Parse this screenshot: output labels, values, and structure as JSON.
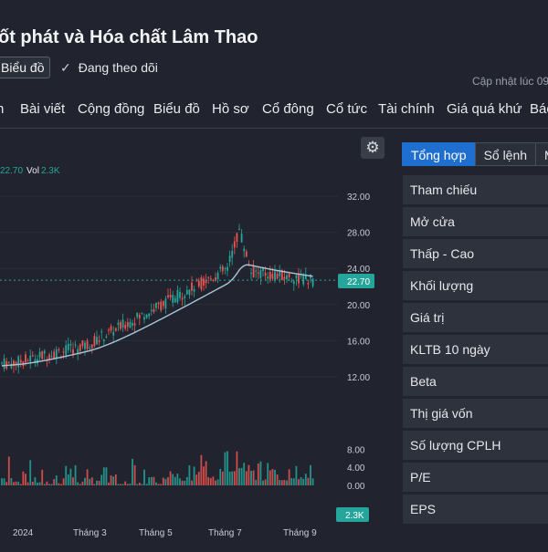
{
  "header": {
    "title": "ốt phát và Hóa chất Lâm Thao",
    "chart_button": "Biểu đồ",
    "follow_label": "Đang theo dõi",
    "updated_label": "Cập nhật lúc  09"
  },
  "nav": {
    "items": [
      "n",
      "Bài viết",
      "Cộng đồng",
      "Biểu đồ",
      "Hồ sơ",
      "Cổ đông",
      "Cổ tức",
      "Tài chính",
      "Giá quá khứ",
      "Báo"
    ]
  },
  "chart": {
    "legend_value": "22.70",
    "legend_vol_label": "Vol",
    "legend_vol_value": "2.3K",
    "price_label": "22.70",
    "volume_label": "2.3K",
    "price_ticks": [
      "32.00",
      "28.00",
      "24.00",
      "20.00",
      "16.00",
      "12.00"
    ],
    "volume_ticks": [
      "8.00",
      "4.00",
      "0.00"
    ],
    "x_ticks": [
      "2024",
      "Tháng 3",
      "Tháng 5",
      "Tháng 7",
      "Tháng 9"
    ],
    "colors": {
      "up": "#26a69a",
      "down": "#ef5350",
      "ma": "#a7c7d9",
      "label": "#26a69a"
    }
  },
  "chart_data": {
    "type": "candlestick",
    "y_price_range": [
      10,
      34
    ],
    "y_volume_range": [
      0,
      10
    ],
    "last_price": 22.7,
    "last_volume": "2.3K",
    "x_labels": [
      "2024",
      "Tháng 3",
      "Tháng 5",
      "Tháng 7",
      "Tháng 9"
    ],
    "closing_trend": [
      {
        "x": "2024",
        "close": 13.5
      },
      {
        "x": "Tháng 3",
        "close": 15.5
      },
      {
        "x": "Tháng 5",
        "close": 19.5
      },
      {
        "x": "Tháng 7",
        "close": 24.0
      },
      {
        "x": "Tháng 9",
        "close": 22.7
      }
    ],
    "peak_price": 29.0
  },
  "panel": {
    "tabs": [
      "Tổng hợp",
      "Sổ lệnh",
      "M"
    ],
    "rows": [
      "Tham chiếu",
      "Mở cửa",
      "Thấp - Cao",
      "Khối lượng",
      "Giá trị",
      "KLTB 10 ngày",
      "Beta",
      "Thị giá vốn",
      "Số lượng CPLH",
      "P/E",
      "EPS"
    ]
  }
}
